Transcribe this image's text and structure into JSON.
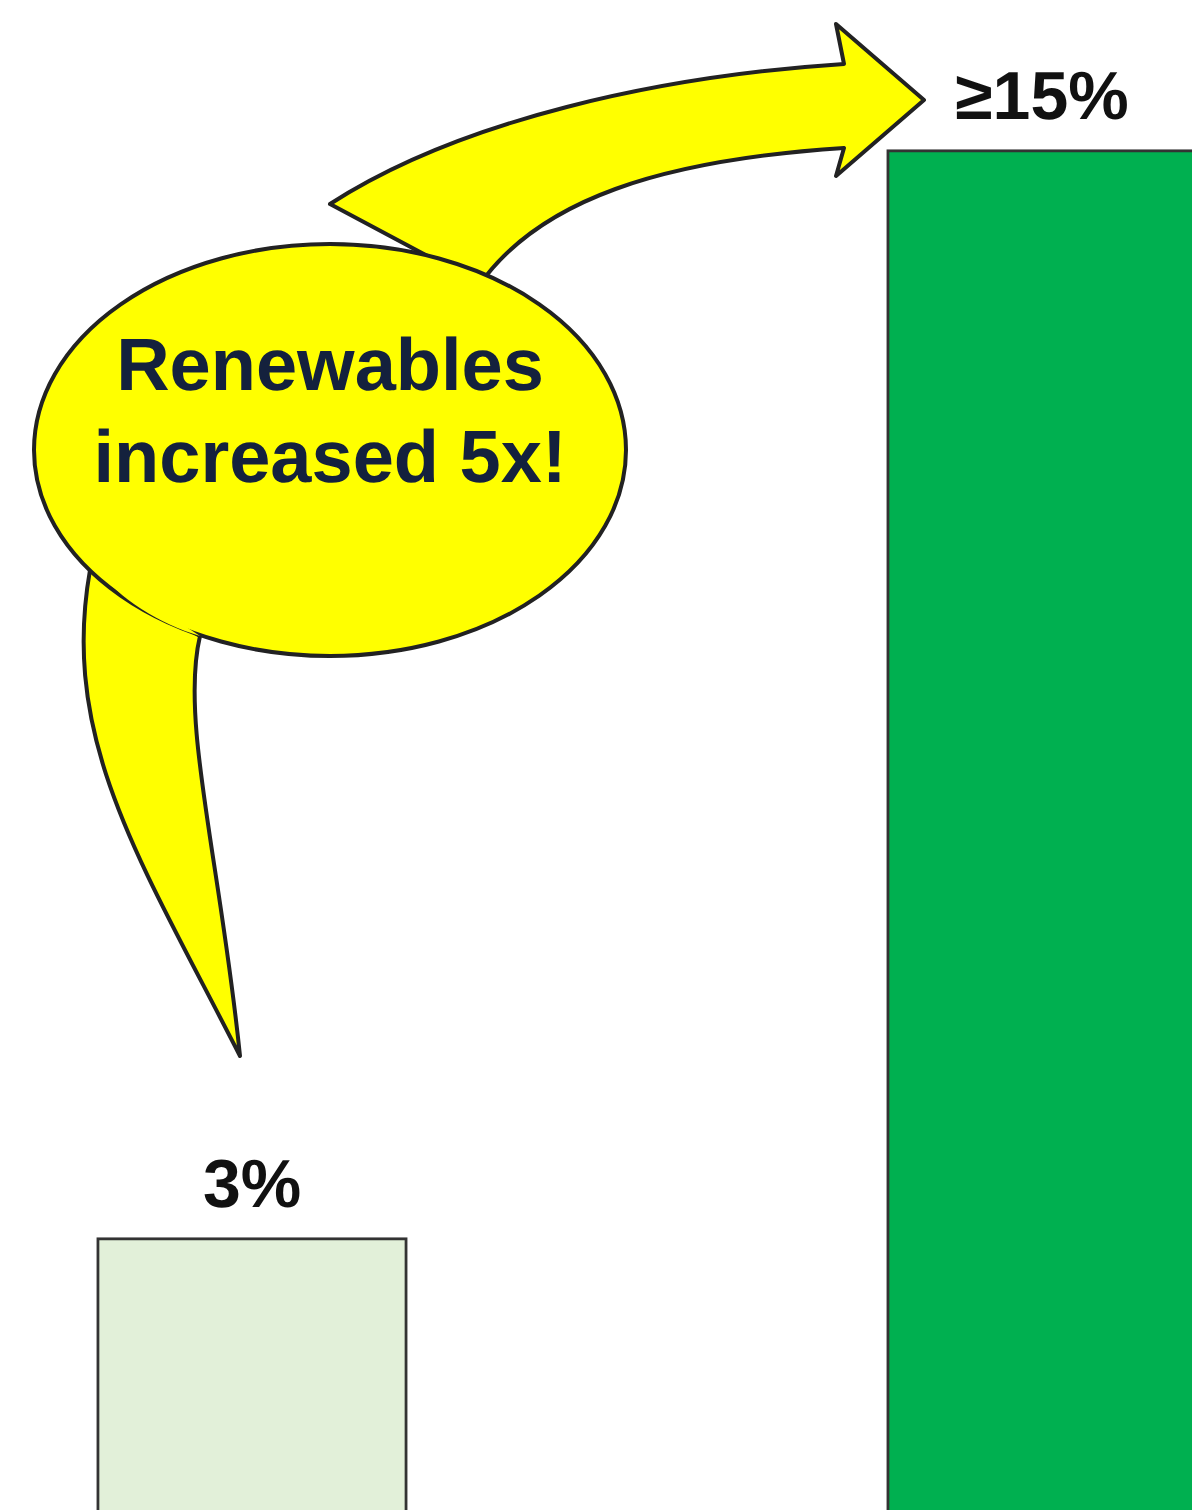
{
  "chart_data": {
    "type": "bar",
    "categories": [
      null,
      null
    ],
    "values": [
      3,
      15
    ],
    "colors": [
      "#e2f0d9",
      "#00b050"
    ],
    "value_labels": [
      "3%",
      "≥15%"
    ],
    "annotations": [
      "Renewables increased 5x!"
    ],
    "legend": false,
    "grid": false,
    "tick_labels": false
  }
}
